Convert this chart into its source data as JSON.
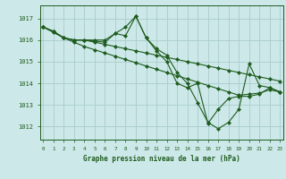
{
  "background_color": "#cce8e8",
  "grid_color": "#aacccc",
  "line_color": "#1f5c1f",
  "title": "Graphe pression niveau de la mer (hPa)",
  "xlim": [
    -0.3,
    23.3
  ],
  "ylim": [
    1011.4,
    1017.6
  ],
  "yticks": [
    1012,
    1013,
    1014,
    1015,
    1016,
    1017
  ],
  "xticks": [
    0,
    1,
    2,
    3,
    4,
    5,
    6,
    7,
    8,
    9,
    10,
    11,
    12,
    13,
    14,
    15,
    16,
    17,
    18,
    19,
    20,
    21,
    22,
    23
  ],
  "series": [
    {
      "x": [
        0,
        1,
        2,
        3,
        4,
        5,
        6,
        7,
        8,
        9,
        10,
        11,
        12,
        13,
        14,
        15,
        16,
        17,
        18,
        19,
        20,
        21,
        22,
        23
      ],
      "y": [
        1016.6,
        1016.4,
        1016.1,
        1016.0,
        1016.0,
        1015.9,
        1015.8,
        1015.7,
        1015.6,
        1015.5,
        1015.4,
        1015.3,
        1015.2,
        1015.1,
        1015.0,
        1014.9,
        1014.8,
        1014.7,
        1014.6,
        1014.5,
        1014.4,
        1014.3,
        1014.2,
        1014.1
      ]
    },
    {
      "x": [
        0,
        1,
        2,
        3,
        4,
        5,
        6,
        7,
        8,
        9,
        10,
        11,
        12,
        13,
        14,
        15,
        16,
        17,
        18,
        19,
        20,
        21,
        22,
        23
      ],
      "y": [
        1016.6,
        1016.35,
        1016.1,
        1015.9,
        1015.7,
        1015.55,
        1015.4,
        1015.25,
        1015.1,
        1014.95,
        1014.8,
        1014.65,
        1014.5,
        1014.35,
        1014.2,
        1014.05,
        1013.9,
        1013.75,
        1013.6,
        1013.45,
        1013.5,
        1013.55,
        1013.7,
        1013.6
      ]
    },
    {
      "x": [
        0,
        1,
        2,
        3,
        4,
        5,
        6,
        7,
        8,
        9,
        10,
        11,
        12,
        13,
        14,
        15,
        16,
        17,
        18,
        19,
        20,
        21,
        22,
        23
      ],
      "y": [
        1016.6,
        1016.4,
        1016.1,
        1016.0,
        1016.0,
        1016.0,
        1016.0,
        1016.3,
        1016.2,
        1017.1,
        1016.1,
        1015.6,
        1015.3,
        1014.5,
        1014.0,
        1013.1,
        1012.2,
        1011.9,
        1012.2,
        1012.8,
        1014.9,
        1013.9,
        1013.8,
        1013.6
      ]
    },
    {
      "x": [
        0,
        1,
        2,
        3,
        4,
        5,
        6,
        7,
        8,
        9,
        10,
        11,
        12,
        13,
        14,
        15,
        16,
        17,
        18,
        19,
        20,
        21,
        22,
        23
      ],
      "y": [
        1016.6,
        1016.4,
        1016.1,
        1016.0,
        1016.0,
        1015.95,
        1015.9,
        1016.3,
        1016.6,
        1017.1,
        1016.1,
        1015.5,
        1015.0,
        1014.0,
        1013.8,
        1014.0,
        1012.15,
        1012.8,
        1013.3,
        1013.4,
        1013.4,
        1013.5,
        1013.8,
        1013.6
      ]
    }
  ]
}
